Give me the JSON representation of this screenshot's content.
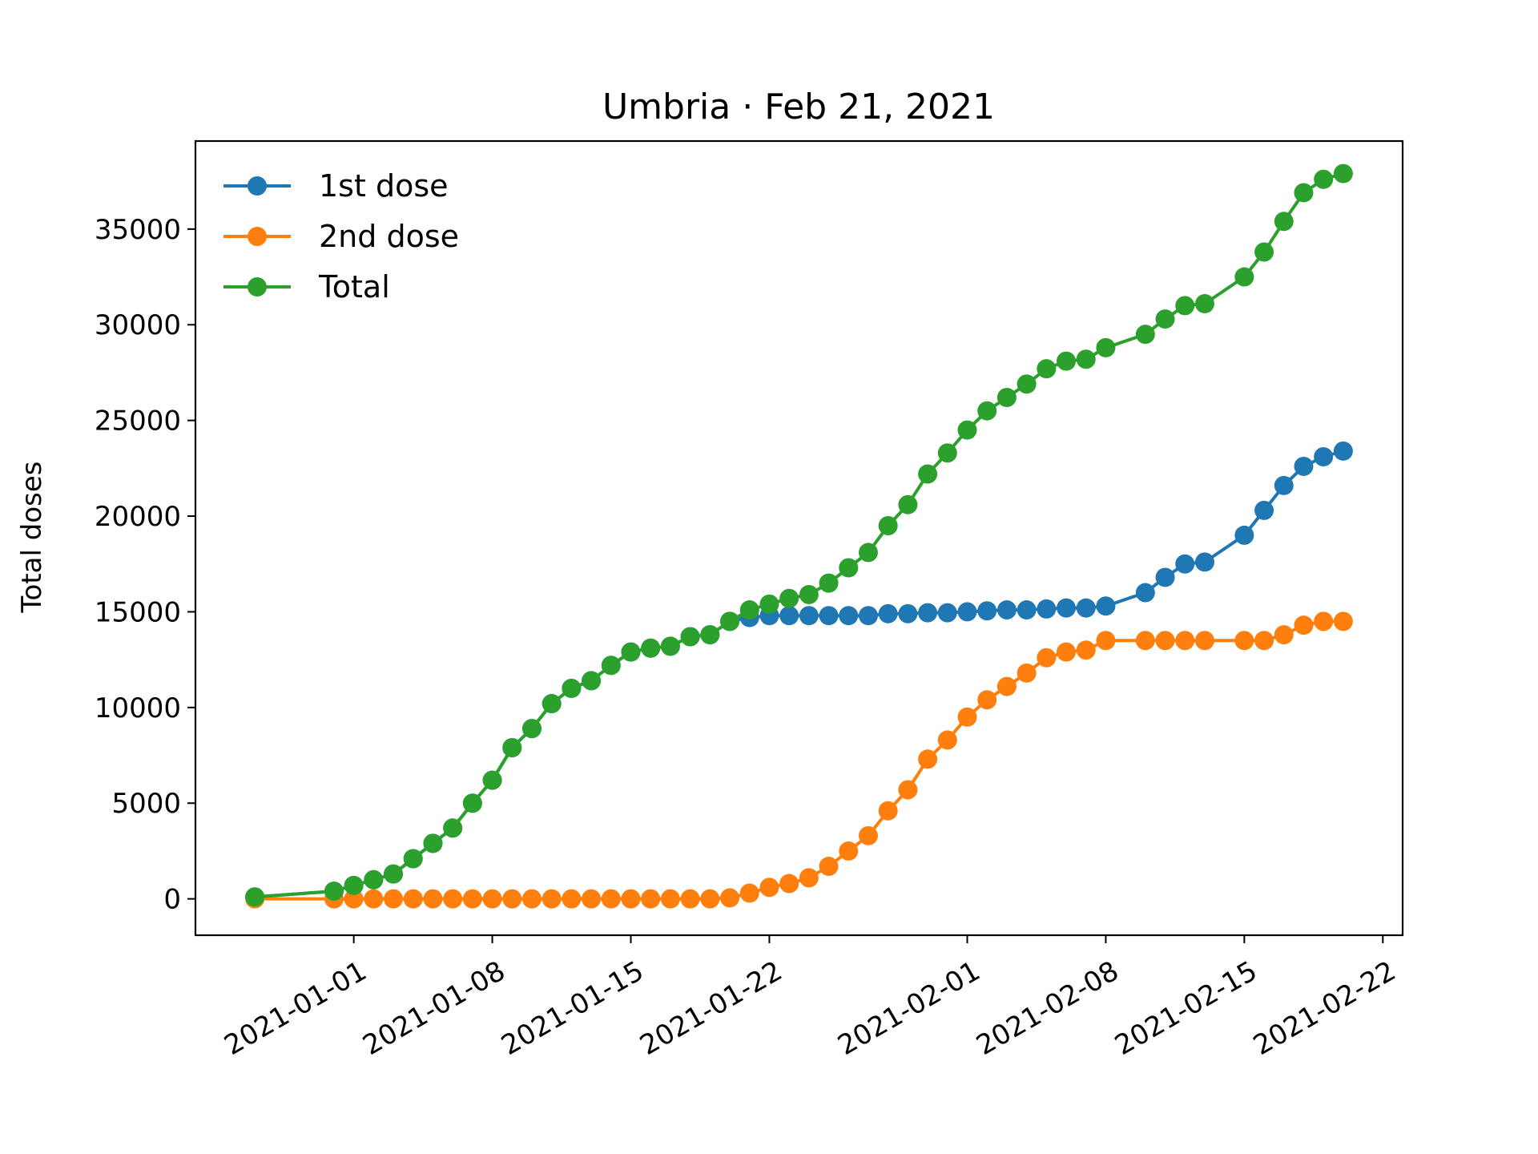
{
  "chart_data": {
    "type": "line",
    "title": "Umbria · Feb 21, 2021",
    "xlabel": "",
    "ylabel": "Total doses",
    "x_range": [
      "2020-12-24",
      "2021-02-23"
    ],
    "y_range": [
      -1900,
      39600
    ],
    "x_ticks": [
      "2021-01-01",
      "2021-01-08",
      "2021-01-15",
      "2021-01-22",
      "2021-02-01",
      "2021-02-08",
      "2021-02-15",
      "2021-02-22"
    ],
    "y_ticks": [
      0,
      5000,
      10000,
      15000,
      20000,
      25000,
      30000,
      35000
    ],
    "grid": false,
    "legend_position": "top-left",
    "x": [
      "2020-12-27",
      "2020-12-31",
      "2021-01-01",
      "2021-01-02",
      "2021-01-03",
      "2021-01-04",
      "2021-01-05",
      "2021-01-06",
      "2021-01-07",
      "2021-01-08",
      "2021-01-09",
      "2021-01-10",
      "2021-01-11",
      "2021-01-12",
      "2021-01-13",
      "2021-01-14",
      "2021-01-15",
      "2021-01-16",
      "2021-01-17",
      "2021-01-18",
      "2021-01-19",
      "2021-01-20",
      "2021-01-21",
      "2021-01-22",
      "2021-01-23",
      "2021-01-24",
      "2021-01-25",
      "2021-01-26",
      "2021-01-27",
      "2021-01-28",
      "2021-01-29",
      "2021-01-30",
      "2021-01-31",
      "2021-02-01",
      "2021-02-02",
      "2021-02-03",
      "2021-02-04",
      "2021-02-05",
      "2021-02-06",
      "2021-02-07",
      "2021-02-08",
      "2021-02-10",
      "2021-02-11",
      "2021-02-12",
      "2021-02-13",
      "2021-02-15",
      "2021-02-16",
      "2021-02-17",
      "2021-02-18",
      "2021-02-19",
      "2021-02-20"
    ],
    "series": [
      {
        "name": "1st dose",
        "color": "#1f77b4",
        "values": [
          100,
          400,
          700,
          1000,
          1300,
          2100,
          2900,
          3700,
          5000,
          6200,
          7900,
          8900,
          10200,
          11000,
          11400,
          12200,
          12900,
          13100,
          13200,
          13700,
          13800,
          14500,
          14700,
          14800,
          14800,
          14800,
          14800,
          14800,
          14800,
          14900,
          14900,
          14950,
          14950,
          15000,
          15050,
          15100,
          15100,
          15150,
          15200,
          15200,
          15300,
          16000,
          16800,
          17500,
          17600,
          19000,
          20300,
          21600,
          22600,
          23100,
          23400
        ]
      },
      {
        "name": "2nd dose",
        "color": "#ff7f0e",
        "values": [
          0,
          0,
          0,
          0,
          0,
          0,
          0,
          0,
          0,
          0,
          0,
          0,
          0,
          0,
          0,
          0,
          0,
          0,
          0,
          0,
          0,
          50,
          300,
          600,
          800,
          1100,
          1700,
          2500,
          3300,
          4600,
          5700,
          7300,
          8300,
          9500,
          10400,
          11100,
          11800,
          12600,
          12900,
          13000,
          13500,
          13500,
          13500,
          13500,
          13500,
          13500,
          13500,
          13800,
          14300,
          14500,
          14500
        ]
      },
      {
        "name": "Total",
        "color": "#2ca02c",
        "values": [
          100,
          400,
          700,
          1000,
          1300,
          2100,
          2900,
          3700,
          5000,
          6200,
          7900,
          8900,
          10200,
          11000,
          11400,
          12200,
          12900,
          13100,
          13200,
          13700,
          13800,
          14500,
          15100,
          15400,
          15700,
          15900,
          16500,
          17300,
          18100,
          19500,
          20600,
          22200,
          23300,
          24500,
          25500,
          26200,
          26900,
          27700,
          28100,
          28200,
          28800,
          29500,
          30300,
          31000,
          31100,
          32500,
          33800,
          35400,
          36900,
          37600,
          37900
        ]
      }
    ]
  }
}
